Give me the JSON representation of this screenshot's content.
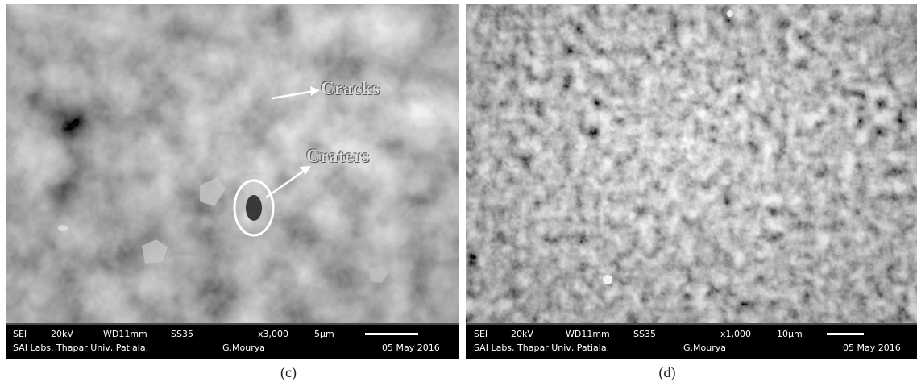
{
  "panels": [
    {
      "id": "c",
      "caption": "(c)",
      "annotations": {
        "cracks": "Cracks",
        "craters": "Craters"
      },
      "info_bar": {
        "mode": "SEI",
        "voltage": "20kV",
        "working_distance": "WD11mm",
        "spot_size": "SS35",
        "magnification": "x3,000",
        "scale": "5µm",
        "lab": "SAI Labs, Thapar Univ, Patiala,",
        "operator": "G.Mourya",
        "date": "05 May 2016"
      }
    },
    {
      "id": "d",
      "caption": "(d)",
      "info_bar": {
        "mode": "SEI",
        "voltage": "20kV",
        "working_distance": "WD11mm",
        "spot_size": "SS35",
        "magnification": "x1,000",
        "scale": "10µm",
        "lab": "SAI Labs, Thapar Univ, Patiala,",
        "operator": "G.Mourya",
        "date": "05 May 2016"
      }
    }
  ]
}
